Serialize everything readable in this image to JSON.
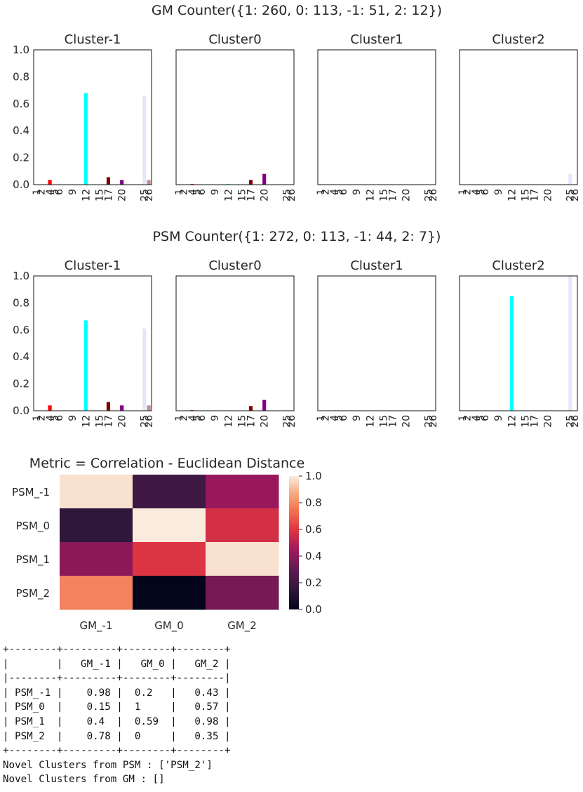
{
  "figure_titles": {
    "gm": "GM Counter({1: 260, 0: 113, -1: 51, 2: 12})",
    "psm": "PSM Counter({1: 272, 0: 113, -1: 44, 2: 7})"
  },
  "chart_data": [
    {
      "type": "bar",
      "group": "GM",
      "title": "Cluster-1",
      "ylim": [
        0,
        1.0
      ],
      "categories": [
        "1",
        "2",
        "4",
        "5",
        "6",
        "9",
        "12",
        "15",
        "17",
        "20",
        "25",
        "26"
      ],
      "colors": [
        "#0000ff",
        "#008000",
        "#ff0000",
        "#00ffff",
        "#ff00ff",
        "#ffff00",
        "#00ffff",
        "#0000ff",
        "#800000",
        "#800080",
        "#e6e6fa",
        "#bc8f8f"
      ],
      "values": [
        0,
        0,
        0.035,
        0,
        0,
        0,
        0.68,
        0,
        0.055,
        0.035,
        0.66,
        0.035
      ]
    },
    {
      "type": "bar",
      "group": "GM",
      "title": "Cluster0",
      "ylim": [
        0,
        1.0
      ],
      "categories": [
        "1",
        "2",
        "4",
        "5",
        "6",
        "9",
        "12",
        "15",
        "17",
        "20",
        "25",
        "26"
      ],
      "colors": [
        "#0000ff",
        "#008000",
        "#ff0000",
        "#00ffff",
        "#ff00ff",
        "#ffff00",
        "#00ffff",
        "#0000ff",
        "#800000",
        "#800080",
        "#e6e6fa",
        "#bc8f8f"
      ],
      "values": [
        0,
        0,
        0.005,
        0,
        0,
        0,
        0.005,
        0,
        0.035,
        0.08,
        0,
        0
      ]
    },
    {
      "type": "bar",
      "group": "GM",
      "title": "Cluster1",
      "ylim": [
        0,
        1.0
      ],
      "categories": [
        "1",
        "2",
        "4",
        "5",
        "6",
        "9",
        "12",
        "15",
        "17",
        "20",
        "25",
        "26"
      ],
      "colors": [
        "#0000ff",
        "#008000",
        "#ff0000",
        "#00ffff",
        "#ff00ff",
        "#ffff00",
        "#00ffff",
        "#0000ff",
        "#800000",
        "#800080",
        "#e6e6fa",
        "#bc8f8f"
      ],
      "values": [
        0,
        0,
        0,
        0,
        0,
        0,
        0,
        0,
        0,
        0,
        0,
        0
      ]
    },
    {
      "type": "bar",
      "group": "GM",
      "title": "Cluster2",
      "ylim": [
        0,
        1.0
      ],
      "categories": [
        "1",
        "2",
        "4",
        "5",
        "6",
        "9",
        "12",
        "15",
        "17",
        "20",
        "25",
        "26"
      ],
      "colors": [
        "#0000ff",
        "#008000",
        "#ff0000",
        "#00ffff",
        "#ff00ff",
        "#ffff00",
        "#00ffff",
        "#0000ff",
        "#800000",
        "#800080",
        "#e6e6fa",
        "#bc8f8f"
      ],
      "values": [
        0,
        0,
        0,
        0,
        0,
        0,
        0,
        0,
        0,
        0,
        0.08,
        0
      ]
    },
    {
      "type": "bar",
      "group": "PSM",
      "title": "Cluster-1",
      "ylim": [
        0,
        1.0
      ],
      "categories": [
        "1",
        "2",
        "4",
        "5",
        "6",
        "9",
        "12",
        "15",
        "17",
        "20",
        "25",
        "26"
      ],
      "colors": [
        "#0000ff",
        "#008000",
        "#ff0000",
        "#00ffff",
        "#ff00ff",
        "#ffff00",
        "#00ffff",
        "#0000ff",
        "#800000",
        "#800080",
        "#e6e6fa",
        "#bc8f8f"
      ],
      "values": [
        0,
        0,
        0.04,
        0,
        0,
        0,
        0.67,
        0,
        0.065,
        0.04,
        0.61,
        0.04
      ]
    },
    {
      "type": "bar",
      "group": "PSM",
      "title": "Cluster0",
      "ylim": [
        0,
        1.0
      ],
      "categories": [
        "1",
        "2",
        "4",
        "5",
        "6",
        "9",
        "12",
        "15",
        "17",
        "20",
        "25",
        "26"
      ],
      "colors": [
        "#0000ff",
        "#008000",
        "#ff0000",
        "#00ffff",
        "#ff00ff",
        "#ffff00",
        "#00ffff",
        "#0000ff",
        "#800000",
        "#800080",
        "#e6e6fa",
        "#bc8f8f"
      ],
      "values": [
        0,
        0,
        0.005,
        0,
        0,
        0,
        0,
        0,
        0.035,
        0.08,
        0,
        0
      ]
    },
    {
      "type": "bar",
      "group": "PSM",
      "title": "Cluster1",
      "ylim": [
        0,
        1.0
      ],
      "categories": [
        "1",
        "2",
        "4",
        "5",
        "6",
        "9",
        "12",
        "15",
        "17",
        "20",
        "25",
        "26"
      ],
      "colors": [
        "#0000ff",
        "#008000",
        "#ff0000",
        "#00ffff",
        "#ff00ff",
        "#ffff00",
        "#00ffff",
        "#0000ff",
        "#800000",
        "#800080",
        "#e6e6fa",
        "#bc8f8f"
      ],
      "values": [
        0,
        0,
        0,
        0,
        0,
        0,
        0,
        0,
        0,
        0,
        0,
        0
      ]
    },
    {
      "type": "bar",
      "group": "PSM",
      "title": "Cluster2",
      "ylim": [
        0,
        1.0
      ],
      "categories": [
        "1",
        "2",
        "4",
        "5",
        "6",
        "9",
        "12",
        "15",
        "17",
        "20",
        "25",
        "26"
      ],
      "colors": [
        "#0000ff",
        "#008000",
        "#ff0000",
        "#00ffff",
        "#ff00ff",
        "#ffff00",
        "#00ffff",
        "#0000ff",
        "#800000",
        "#800080",
        "#e6e6fa",
        "#bc8f8f"
      ],
      "values": [
        0,
        0,
        0,
        0,
        0,
        0,
        0.85,
        0,
        0,
        0,
        1.0,
        0
      ]
    },
    {
      "type": "heatmap",
      "title": "Metric = Correlation - Euclidean Distance",
      "rows": [
        "PSM_-1",
        "PSM_0",
        "PSM_1",
        "PSM_2"
      ],
      "columns": [
        "GM_-1",
        "GM_0",
        "GM_2"
      ],
      "values": [
        [
          0.98,
          0.2,
          0.43
        ],
        [
          0.15,
          1,
          0.57
        ],
        [
          0.4,
          0.59,
          0.98
        ],
        [
          0.78,
          0,
          0.35
        ]
      ],
      "colorbar": {
        "ticks": [
          "0.0",
          "0.2",
          "0.4",
          "0.6",
          "0.8",
          "1.0"
        ],
        "range": [
          0,
          1.0
        ]
      }
    }
  ],
  "console": {
    "lines": [
      "+--------+---------+--------+--------+",
      "|        |   GM_-1 |   GM_0 |   GM_2 |",
      "|--------+---------+--------+--------|",
      "| PSM_-1 |    0.98 |  0.2   |   0.43 |",
      "| PSM_0  |    0.15 |  1     |   0.57 |",
      "| PSM_1  |    0.4  |  0.59  |   0.98 |",
      "| PSM_2  |    0.78 |  0     |   0.35 |",
      "+--------+---------+--------+--------+",
      "Novel Clusters from PSM : ['PSM_2']",
      "Novel Clusters from GM : []"
    ]
  }
}
